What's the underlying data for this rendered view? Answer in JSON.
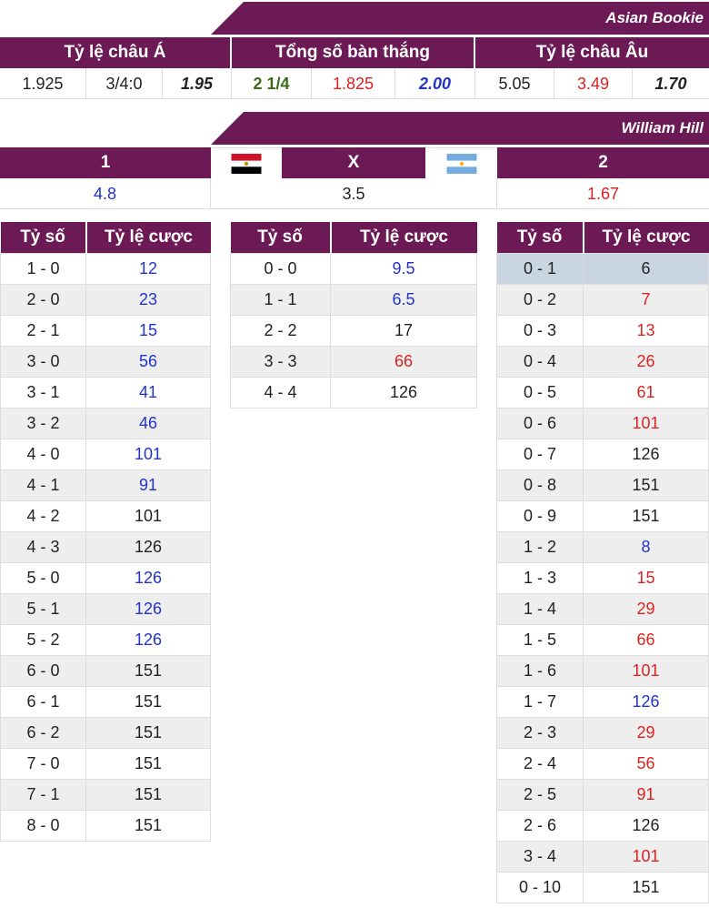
{
  "asian": {
    "bookie": "Asian Bookie",
    "headers": [
      "Tỷ lệ châu Á",
      "Tổng số bàn thắng",
      "Tỷ lệ châu Âu"
    ],
    "values": [
      {
        "text": "1.925",
        "color": "black",
        "style": ""
      },
      {
        "text": "3/4:0",
        "color": "black",
        "style": ""
      },
      {
        "text": "1.95",
        "color": "black",
        "style": "bold-italic"
      },
      {
        "text": "2 1/4",
        "color": "green",
        "style": "bold"
      },
      {
        "text": "1.825",
        "color": "red",
        "style": ""
      },
      {
        "text": "2.00",
        "color": "blue",
        "style": "bold-italic"
      },
      {
        "text": "5.05",
        "color": "black",
        "style": ""
      },
      {
        "text": "3.49",
        "color": "red",
        "style": ""
      },
      {
        "text": "1.70",
        "color": "black",
        "style": "bold-italic"
      }
    ]
  },
  "william": {
    "bookie": "William Hill",
    "h_home": "1",
    "h_draw": "X",
    "h_away": "2",
    "home_flag": "egypt-flag",
    "away_flag": "argentina-flag",
    "v_home": "4.8",
    "v_draw": "3.5",
    "v_away": "1.67"
  },
  "score_headers": [
    "Tỷ số",
    "Tỷ lệ cược"
  ],
  "home_scores": [
    [
      "1 - 0",
      "12",
      "blue"
    ],
    [
      "2 - 0",
      "23",
      "blue"
    ],
    [
      "2 - 1",
      "15",
      "blue"
    ],
    [
      "3 - 0",
      "56",
      "blue"
    ],
    [
      "3 - 1",
      "41",
      "blue"
    ],
    [
      "3 - 2",
      "46",
      "blue"
    ],
    [
      "4 - 0",
      "101",
      "blue"
    ],
    [
      "4 - 1",
      "91",
      "blue"
    ],
    [
      "4 - 2",
      "101",
      "black"
    ],
    [
      "4 - 3",
      "126",
      "black"
    ],
    [
      "5 - 0",
      "126",
      "blue"
    ],
    [
      "5 - 1",
      "126",
      "blue"
    ],
    [
      "5 - 2",
      "126",
      "blue"
    ],
    [
      "6 - 0",
      "151",
      "black"
    ],
    [
      "6 - 1",
      "151",
      "black"
    ],
    [
      "6 - 2",
      "151",
      "black"
    ],
    [
      "7 - 0",
      "151",
      "black"
    ],
    [
      "7 - 1",
      "151",
      "black"
    ],
    [
      "8 - 0",
      "151",
      "black"
    ]
  ],
  "draw_scores": [
    [
      "0 - 0",
      "9.5",
      "blue"
    ],
    [
      "1 - 1",
      "6.5",
      "blue"
    ],
    [
      "2 - 2",
      "17",
      "black"
    ],
    [
      "3 - 3",
      "66",
      "red"
    ],
    [
      "4 - 4",
      "126",
      "black"
    ]
  ],
  "away_scores": [
    [
      "0 - 1",
      "6",
      "black"
    ],
    [
      "0 - 2",
      "7",
      "red"
    ],
    [
      "0 - 3",
      "13",
      "red"
    ],
    [
      "0 - 4",
      "26",
      "red"
    ],
    [
      "0 - 5",
      "61",
      "red"
    ],
    [
      "0 - 6",
      "101",
      "red"
    ],
    [
      "0 - 7",
      "126",
      "black"
    ],
    [
      "0 - 8",
      "151",
      "black"
    ],
    [
      "0 - 9",
      "151",
      "black"
    ],
    [
      "1 - 2",
      "8",
      "blue"
    ],
    [
      "1 - 3",
      "15",
      "red"
    ],
    [
      "1 - 4",
      "29",
      "red"
    ],
    [
      "1 - 5",
      "66",
      "red"
    ],
    [
      "1 - 6",
      "101",
      "red"
    ],
    [
      "1 - 7",
      "126",
      "blue"
    ],
    [
      "2 - 3",
      "29",
      "red"
    ],
    [
      "2 - 4",
      "56",
      "red"
    ],
    [
      "2 - 5",
      "91",
      "red"
    ],
    [
      "2 - 6",
      "126",
      "black"
    ],
    [
      "3 - 4",
      "101",
      "red"
    ],
    [
      "0 - 10",
      "151",
      "black"
    ]
  ],
  "away_selected_index": 0
}
